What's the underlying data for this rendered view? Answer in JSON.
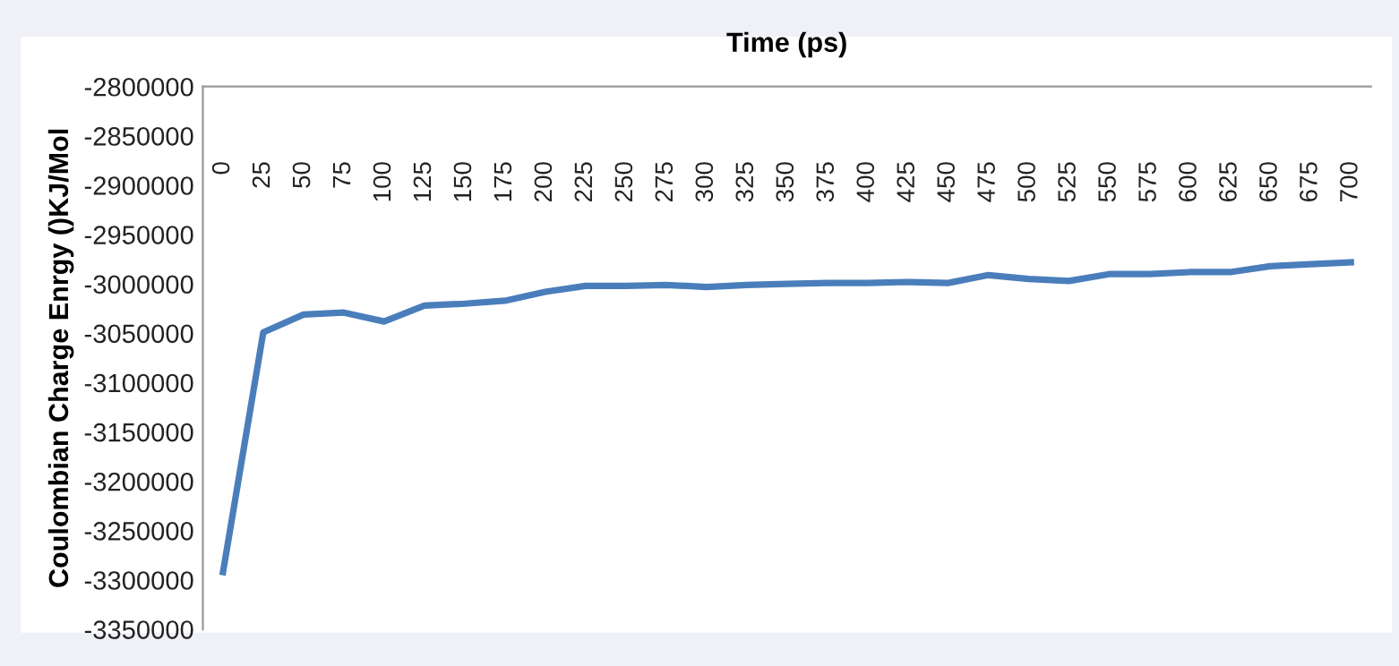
{
  "chart_data": {
    "type": "line",
    "xlabel": "Time (ps)",
    "ylabel": "Coulombian Charge Enrgy ()KJ/Mol",
    "categories": [
      "0",
      "25",
      "50",
      "75",
      "100",
      "125",
      "150",
      "175",
      "200",
      "225",
      "250",
      "275",
      "300",
      "325",
      "350",
      "375",
      "400",
      "425",
      "450",
      "475",
      "500",
      "525",
      "550",
      "575",
      "600",
      "625",
      "650",
      "675",
      "700"
    ],
    "series": [
      {
        "color": "#4a7ebb",
        "values": [
          -3292000,
          -3049000,
          -3031000,
          -3029000,
          -3038000,
          -3022000,
          -3020000,
          -3017000,
          -3008000,
          -3002000,
          -3002000,
          -3001000,
          -3003000,
          -3001000,
          -3000000,
          -2999000,
          -2999000,
          -2998000,
          -2999000,
          -2991000,
          -2995000,
          -2997000,
          -2990000,
          -2990000,
          -2988000,
          -2988000,
          -2982000,
          -2980000,
          -2978000
        ]
      }
    ],
    "ylim": [
      -3350000,
      -2800000
    ],
    "yticks": [
      -3350000,
      -3300000,
      -3250000,
      -3200000,
      -3150000,
      -3100000,
      -3050000,
      -3000000,
      -2950000,
      -2900000,
      -2850000,
      -2800000
    ],
    "grid": false,
    "legend": false,
    "marker": "none",
    "line_style": "solid"
  }
}
